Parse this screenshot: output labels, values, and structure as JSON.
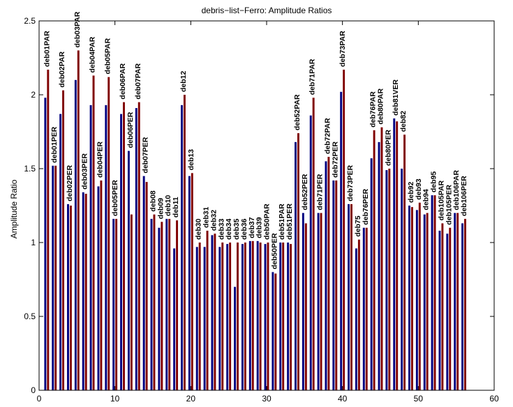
{
  "chart_data": {
    "type": "bar",
    "title": "debris−list−Ferro: Amplitude Ratios",
    "xlabel": "",
    "ylabel": "Amplitude Ratio",
    "xlim": [
      0,
      60
    ],
    "ylim": [
      0,
      2.5
    ],
    "xticks": [
      "0",
      "10",
      "20",
      "30",
      "40",
      "50",
      "60"
    ],
    "yticks": [
      "0",
      "0.5",
      "1",
      "1.5",
      "2",
      "2.5"
    ],
    "grid": false,
    "series_colors": [
      "#000080",
      "#800000"
    ],
    "bars": [
      {
        "label": "deb01PAR",
        "values": [
          1.98,
          2.17
        ]
      },
      {
        "label": "deb01PER",
        "values": [
          1.52,
          1.52
        ]
      },
      {
        "label": "deb02PAR",
        "values": [
          1.87,
          2.03
        ]
      },
      {
        "label": "deb02PER",
        "values": [
          1.26,
          1.25
        ]
      },
      {
        "label": "deb03PAR",
        "values": [
          2.1,
          2.3
        ]
      },
      {
        "label": "deb03PER",
        "values": [
          1.34,
          1.33
        ]
      },
      {
        "label": "deb04PAR",
        "values": [
          1.93,
          2.13
        ]
      },
      {
        "label": "deb04PER",
        "values": [
          1.38,
          1.42
        ]
      },
      {
        "label": "deb05PAR",
        "values": [
          1.93,
          2.12
        ]
      },
      {
        "label": "deb05PER",
        "values": [
          1.16,
          1.16
        ]
      },
      {
        "label": "deb06PAR",
        "values": [
          1.87,
          1.95
        ]
      },
      {
        "label": "deb06PER",
        "values": [
          1.62,
          1.19
        ]
      },
      {
        "label": "deb07PAR",
        "values": [
          1.91,
          1.95
        ]
      },
      {
        "label": "deb07PER",
        "values": [
          1.45,
          1.41
        ]
      },
      {
        "label": "deb08",
        "values": [
          1.16,
          1.19
        ]
      },
      {
        "label": "deb09",
        "values": [
          1.1,
          1.14
        ]
      },
      {
        "label": "deb10",
        "values": [
          1.16,
          1.16
        ]
      },
      {
        "label": "deb11",
        "values": [
          0.96,
          1.15
        ]
      },
      {
        "label": "deb12",
        "values": [
          1.93,
          2.0
        ]
      },
      {
        "label": "deb13",
        "values": [
          1.45,
          1.47
        ]
      },
      {
        "label": "deb30",
        "values": [
          0.97,
          1.0
        ]
      },
      {
        "label": "deb31",
        "values": [
          0.97,
          1.08
        ]
      },
      {
        "label": "deb32",
        "values": [
          1.05,
          1.06
        ]
      },
      {
        "label": "deb33",
        "values": [
          0.97,
          1.0
        ]
      },
      {
        "label": "deb34",
        "values": [
          0.99,
          1.0
        ]
      },
      {
        "label": "deb35",
        "values": [
          0.7,
          1.0
        ]
      },
      {
        "label": "deb36",
        "values": [
          0.99,
          1.0
        ]
      },
      {
        "label": "deb37",
        "values": [
          1.01,
          1.01
        ]
      },
      {
        "label": "deb39",
        "values": [
          1.01,
          1.0
        ]
      },
      {
        "label": "deb50PAR",
        "values": [
          0.99,
          1.0
        ]
      },
      {
        "label": "deb50PER",
        "values": [
          0.8,
          0.79
        ]
      },
      {
        "label": "deb51PAR",
        "values": [
          1.0,
          1.0
        ]
      },
      {
        "label": "deb51PER",
        "values": [
          1.0,
          0.99
        ]
      },
      {
        "label": "deb52PAR",
        "values": [
          1.68,
          1.74
        ]
      },
      {
        "label": "deb52PER",
        "values": [
          1.2,
          1.13
        ]
      },
      {
        "label": "deb71PAR",
        "values": [
          1.86,
          1.98
        ]
      },
      {
        "label": "deb71PER",
        "values": [
          1.2,
          1.2
        ]
      },
      {
        "label": "deb72PAR",
        "values": [
          1.55,
          1.58
        ]
      },
      {
        "label": "deb72PER",
        "values": [
          1.42,
          1.42
        ]
      },
      {
        "label": "deb73PAR",
        "values": [
          2.02,
          2.17
        ]
      },
      {
        "label": "deb73PER",
        "values": [
          1.26,
          1.26
        ]
      },
      {
        "label": "deb75",
        "values": [
          0.96,
          1.02
        ]
      },
      {
        "label": "deb76PER",
        "values": [
          1.1,
          1.1
        ]
      },
      {
        "label": "deb76PAR",
        "values": [
          1.57,
          1.76
        ]
      },
      {
        "label": "deb80PAR",
        "values": [
          1.68,
          1.78
        ]
      },
      {
        "label": "deb80PER",
        "values": [
          1.49,
          1.5
        ]
      },
      {
        "label": "deb81VER",
        "values": [
          1.84,
          1.82
        ]
      },
      {
        "label": "deb82",
        "values": [
          1.5,
          1.73
        ]
      },
      {
        "label": "deb92",
        "values": [
          1.25,
          1.24
        ]
      },
      {
        "label": "deb93",
        "values": [
          1.22,
          1.27
        ]
      },
      {
        "label": "deb94",
        "values": [
          1.19,
          1.2
        ]
      },
      {
        "label": "deb95",
        "values": [
          1.32,
          1.32
        ]
      },
      {
        "label": "deb105PAR",
        "values": [
          1.08,
          1.13
        ]
      },
      {
        "label": "deb105PER",
        "values": [
          1.06,
          1.1
        ]
      },
      {
        "label": "deb106PAR",
        "values": [
          1.2,
          1.2
        ]
      },
      {
        "label": "deb106PER",
        "values": [
          1.13,
          1.16
        ]
      }
    ]
  }
}
